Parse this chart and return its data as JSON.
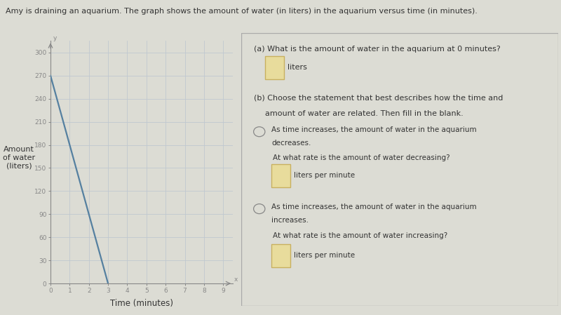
{
  "title": "Amy is draining an aquarium. The graph shows the amount of water (in liters) in the aquarium versus time (in minutes).",
  "graph_line_x": [
    0,
    3
  ],
  "graph_line_y": [
    270,
    0
  ],
  "x_label": "Time (minutes)",
  "y_label_lines": [
    "Amount",
    "of water",
    "(liters)"
  ],
  "x_ticks": [
    0,
    1,
    2,
    3,
    4,
    5,
    6,
    7,
    8,
    9
  ],
  "y_ticks": [
    0,
    30,
    60,
    90,
    120,
    150,
    180,
    210,
    240,
    270,
    300
  ],
  "xlim": [
    0,
    9.5
  ],
  "ylim": [
    0,
    315
  ],
  "line_color": "#5580a0",
  "bg_color": "#dcdcd4",
  "panel_bg": "#d4d4cc",
  "grid_color": "#c0c8d0",
  "axis_color": "#888888",
  "title_color": "#333333",
  "panel_text_color": "#333333",
  "answer_box_fill": "#e8dc9c",
  "answer_box_border": "#c8b060",
  "radio_color": "#888888",
  "qa_title_a": "(a) What is the amount of water in the aquarium at 0 minutes?",
  "qa_answer_a_suffix": "liters",
  "qa_title_b": "(b) Choose the statement that best describes how the time and\n     amount of water are related. Then fill in the blank.",
  "qa_option1a": "As time increases, the amount of water in the aquarium",
  "qa_option1b": "decreases.",
  "qa_sub1": "At what rate is the amount of water decreasing?",
  "qa_answer_sub1_suffix": "liters per minute",
  "qa_option2a": "As time increases, the amount of water in the aquarium",
  "qa_option2b": "increases.",
  "qa_sub2": "At what rate is the amount of water increasing?",
  "qa_answer_sub2_suffix": "liters per minute"
}
